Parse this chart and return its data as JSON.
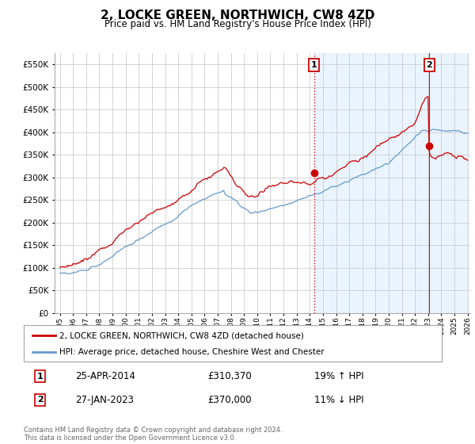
{
  "title": "2, LOCKE GREEN, NORTHWICH, CW8 4ZD",
  "subtitle": "Price paid vs. HM Land Registry's House Price Index (HPI)",
  "title_fontsize": 11,
  "subtitle_fontsize": 9,
  "legend_entry1": "2, LOCKE GREEN, NORTHWICH, CW8 4ZD (detached house)",
  "legend_entry2": "HPI: Average price, detached house, Cheshire West and Chester",
  "transaction1_date": "25-APR-2014",
  "transaction1_price": "£310,370",
  "transaction1_hpi": "19% ↑ HPI",
  "transaction2_date": "27-JAN-2023",
  "transaction2_price": "£370,000",
  "transaction2_hpi": "11% ↓ HPI",
  "footer": "Contains HM Land Registry data © Crown copyright and database right 2024.\nThis data is licensed under the Open Government Licence v3.0.",
  "ylim": [
    0,
    575000
  ],
  "yticks": [
    0,
    50000,
    100000,
    150000,
    200000,
    250000,
    300000,
    350000,
    400000,
    450000,
    500000,
    550000
  ],
  "red_color": "#cc0000",
  "blue_color": "#6699cc",
  "blue_fill_color": "#ddeeff",
  "grid_color": "#cccccc",
  "background_color": "#ffffff",
  "t1_year": 2014.32,
  "t2_year": 2023.08,
  "t1_price": 310370,
  "t2_price": 370000
}
